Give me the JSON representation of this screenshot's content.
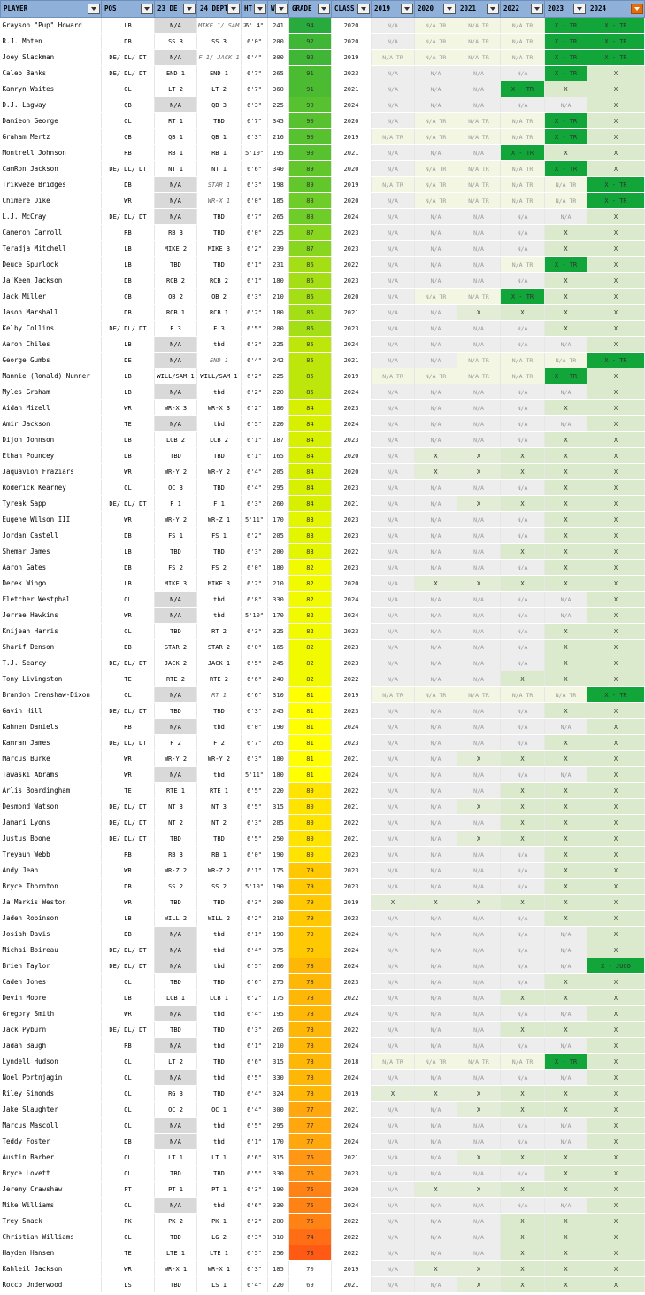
{
  "columns": [
    "PLAYER",
    "POS",
    "23 DE",
    "24 DEPTH",
    "HT",
    "WT",
    "GRADE",
    "CLASS",
    "2019",
    "2020",
    "2021",
    "2022",
    "2023",
    "2024"
  ],
  "rows": [
    [
      "Grayson \"Pup\" Howard",
      "LB",
      "N/A",
      "MIKE 1/ SAM 2",
      "6' 4\"",
      "241",
      "94",
      "2020",
      "N/A",
      "N/A TR",
      "N/A TR",
      "N/A TR",
      "X - TR",
      "X - TR"
    ],
    [
      "R.J. Moten",
      "DB",
      "SS 3",
      "SS 3",
      "6'0\"",
      "200",
      "92",
      "2020",
      "N/A",
      "N/A TR",
      "N/A TR",
      "N/A TR",
      "X - TR",
      "X - TR"
    ],
    [
      "Joey Slackman",
      "DE/ DL/ DT",
      "N/A",
      "F 1/ JACK 1",
      "6'4\"",
      "300",
      "92",
      "2019",
      "N/A TR",
      "N/A TR",
      "N/A TR",
      "N/A TR",
      "X - TR",
      "X - TR"
    ],
    [
      "Caleb Banks",
      "DE/ DL/ DT",
      "END 1",
      "END 1",
      "6'7\"",
      "265",
      "91",
      "2023",
      "N/A",
      "N/A",
      "N/A",
      "N/A",
      "X - TR",
      "X"
    ],
    [
      "Kamryn Waites",
      "OL",
      "LT 2",
      "LT 2",
      "6'7\"",
      "360",
      "91",
      "2021",
      "N/A",
      "N/A",
      "N/A",
      "X - TR",
      "X",
      "X"
    ],
    [
      "D.J. Lagway",
      "QB",
      "N/A",
      "QB 3",
      "6'3\"",
      "225",
      "90",
      "2024",
      "N/A",
      "N/A",
      "N/A",
      "N/A",
      "N/A",
      "X"
    ],
    [
      "Damieon George",
      "OL",
      "RT 1",
      "TBD",
      "6'7\"",
      "345",
      "90",
      "2020",
      "N/A",
      "N/A TR",
      "N/A TR",
      "N/A TR",
      "X - TR",
      "X"
    ],
    [
      "Graham Mertz",
      "QB",
      "QB 1",
      "QB 1",
      "6'3\"",
      "216",
      "90",
      "2019",
      "N/A TR",
      "N/A TR",
      "N/A TR",
      "N/A TR",
      "X - TR",
      "X"
    ],
    [
      "Montrell Johnson",
      "RB",
      "RB 1",
      "RB 1",
      "5'10\"",
      "195",
      "90",
      "2021",
      "N/A",
      "N/A",
      "N/A",
      "X - TR",
      "X",
      "X"
    ],
    [
      "CamRon Jackson",
      "DE/ DL/ DT",
      "NT 1",
      "NT 1",
      "6'6\"",
      "340",
      "89",
      "2020",
      "N/A",
      "N/A TR",
      "N/A TR",
      "N/A TR",
      "X - TR",
      "X"
    ],
    [
      "Trikweze Bridges",
      "DB",
      "N/A",
      "STAR 1",
      "6'3\"",
      "198",
      "89",
      "2019",
      "N/A TR",
      "N/A TR",
      "N/A TR",
      "N/A TR",
      "N/A TR",
      "X - TR"
    ],
    [
      "Chimere Dike",
      "WR",
      "N/A",
      "WR-X 1",
      "6'0\"",
      "185",
      "88",
      "2020",
      "N/A",
      "N/A TR",
      "N/A TR",
      "N/A TR",
      "N/A TR",
      "X - TR"
    ],
    [
      "L.J. McCray",
      "DE/ DL/ DT",
      "N/A",
      "TBD",
      "6'7\"",
      "265",
      "88",
      "2024",
      "N/A",
      "N/A",
      "N/A",
      "N/A",
      "N/A",
      "X"
    ],
    [
      "Cameron Carroll",
      "RB",
      "RB 3",
      "TBD",
      "6'0\"",
      "225",
      "87",
      "2023",
      "N/A",
      "N/A",
      "N/A",
      "N/A",
      "X",
      "X"
    ],
    [
      "Teradja Mitchell",
      "LB",
      "MIKE 2",
      "MIKE 3",
      "6'2\"",
      "239",
      "87",
      "2023",
      "N/A",
      "N/A",
      "N/A",
      "N/A",
      "X",
      "X"
    ],
    [
      "Deuce Spurlock",
      "LB",
      "TBD",
      "TBD",
      "6'1\"",
      "231",
      "86",
      "2022",
      "N/A",
      "N/A",
      "N/A",
      "N/A TR",
      "X - TR",
      "X"
    ],
    [
      "Ja'Keem Jackson",
      "DB",
      "RCB 2",
      "RCB 2",
      "6'1\"",
      "180",
      "86",
      "2023",
      "N/A",
      "N/A",
      "N/A",
      "N/A",
      "X",
      "X"
    ],
    [
      "Jack Miller",
      "QB",
      "QB 2",
      "QB 2",
      "6'3\"",
      "210",
      "86",
      "2020",
      "N/A",
      "N/A TR",
      "N/A TR",
      "X - TR",
      "X",
      "X"
    ],
    [
      "Jason Marshall",
      "DB",
      "RCB 1",
      "RCB 1",
      "6'2\"",
      "180",
      "86",
      "2021",
      "N/A",
      "N/A",
      "X",
      "X",
      "X",
      "X"
    ],
    [
      "Kelby Collins",
      "DE/ DL/ DT",
      "F 3",
      "F 3",
      "6'5\"",
      "280",
      "86",
      "2023",
      "N/A",
      "N/A",
      "N/A",
      "N/A",
      "X",
      "X"
    ],
    [
      "Aaron Chiles",
      "LB",
      "N/A",
      "tbd",
      "6'3\"",
      "225",
      "85",
      "2024",
      "N/A",
      "N/A",
      "N/A",
      "N/A",
      "N/A",
      "X"
    ],
    [
      "George Gumbs",
      "DE",
      "N/A",
      "END 1",
      "6'4\"",
      "242",
      "85",
      "2021",
      "N/A",
      "N/A",
      "N/A TR",
      "N/A TR",
      "N/A TR",
      "X - TR"
    ],
    [
      "Mannie (Ronald) Nunner",
      "LB",
      "WILL/SAM 1",
      "WILL/SAM 1",
      "6'2\"",
      "225",
      "85",
      "2019",
      "N/A TR",
      "N/A TR",
      "N/A TR",
      "N/A TR",
      "X - TR",
      "X"
    ],
    [
      "Myles Graham",
      "LB",
      "N/A",
      "tbd",
      "6'2\"",
      "220",
      "85",
      "2024",
      "N/A",
      "N/A",
      "N/A",
      "N/A",
      "N/A",
      "X"
    ],
    [
      "Aidan Mizell",
      "WR",
      "WR-X 3",
      "WR-X 3",
      "6'2\"",
      "180",
      "84",
      "2023",
      "N/A",
      "N/A",
      "N/A",
      "N/A",
      "X",
      "X"
    ],
    [
      "Amir Jackson",
      "TE",
      "N/A",
      "tbd",
      "6'5\"",
      "220",
      "84",
      "2024",
      "N/A",
      "N/A",
      "N/A",
      "N/A",
      "N/A",
      "X"
    ],
    [
      "Dijon Johnson",
      "DB",
      "LCB 2",
      "LCB 2",
      "6'1\"",
      "187",
      "84",
      "2023",
      "N/A",
      "N/A",
      "N/A",
      "N/A",
      "X",
      "X"
    ],
    [
      "Ethan Pouncey",
      "DB",
      "TBD",
      "TBD",
      "6'1\"",
      "165",
      "84",
      "2020",
      "N/A",
      "X",
      "X",
      "X",
      "X",
      "X"
    ],
    [
      "Jaquavion Fraziars",
      "WR",
      "WR-Y 2",
      "WR-Y 2",
      "6'4\"",
      "205",
      "84",
      "2020",
      "N/A",
      "X",
      "X",
      "X",
      "X",
      "X"
    ],
    [
      "Roderick Kearney",
      "OL",
      "OC 3",
      "TBD",
      "6'4\"",
      "295",
      "84",
      "2023",
      "N/A",
      "N/A",
      "N/A",
      "N/A",
      "X",
      "X"
    ],
    [
      "Tyreak Sapp",
      "DE/ DL/ DT",
      "F 1",
      "F 1",
      "6'3\"",
      "260",
      "84",
      "2021",
      "N/A",
      "N/A",
      "X",
      "X",
      "X",
      "X"
    ],
    [
      "Eugene Wilson III",
      "WR",
      "WR-Y 2",
      "WR-Z 1",
      "5'11\"",
      "170",
      "83",
      "2023",
      "N/A",
      "N/A",
      "N/A",
      "N/A",
      "X",
      "X"
    ],
    [
      "Jordan Castell",
      "DB",
      "FS 1",
      "FS 1",
      "6'2\"",
      "205",
      "83",
      "2023",
      "N/A",
      "N/A",
      "N/A",
      "N/A",
      "X",
      "X"
    ],
    [
      "Shemar James",
      "LB",
      "TBD",
      "TBD",
      "6'3\"",
      "200",
      "83",
      "2022",
      "N/A",
      "N/A",
      "N/A",
      "X",
      "X",
      "X"
    ],
    [
      "Aaron Gates",
      "DB",
      "FS 2",
      "FS 2",
      "6'0\"",
      "180",
      "82",
      "2023",
      "N/A",
      "N/A",
      "N/A",
      "N/A",
      "X",
      "X"
    ],
    [
      "Derek Wingo",
      "LB",
      "MIKE 3",
      "MIKE 3",
      "6'2\"",
      "210",
      "82",
      "2020",
      "N/A",
      "X",
      "X",
      "X",
      "X",
      "X"
    ],
    [
      "Fletcher Westphal",
      "OL",
      "N/A",
      "tbd",
      "6'8\"",
      "330",
      "82",
      "2024",
      "N/A",
      "N/A",
      "N/A",
      "N/A",
      "N/A",
      "X"
    ],
    [
      "Jerrae Hawkins",
      "WR",
      "N/A",
      "tbd",
      "5'10\"",
      "170",
      "82",
      "2024",
      "N/A",
      "N/A",
      "N/A",
      "N/A",
      "N/A",
      "X"
    ],
    [
      "Knijeah Harris",
      "OL",
      "TBD",
      "RT 2",
      "6'3\"",
      "325",
      "82",
      "2023",
      "N/A",
      "N/A",
      "N/A",
      "N/A",
      "X",
      "X"
    ],
    [
      "Sharif Denson",
      "DB",
      "STAR 2",
      "STAR 2",
      "6'0\"",
      "165",
      "82",
      "2023",
      "N/A",
      "N/A",
      "N/A",
      "N/A",
      "X",
      "X"
    ],
    [
      "T.J. Searcy",
      "DE/ DL/ DT",
      "JACK 2",
      "JACK 1",
      "6'5\"",
      "245",
      "82",
      "2023",
      "N/A",
      "N/A",
      "N/A",
      "N/A",
      "X",
      "X"
    ],
    [
      "Tony Livingston",
      "TE",
      "RTE 2",
      "RTE 2",
      "6'6\"",
      "240",
      "82",
      "2022",
      "N/A",
      "N/A",
      "N/A",
      "X",
      "X",
      "X"
    ],
    [
      "Brandon Crenshaw-Dixon",
      "OL",
      "N/A",
      "RT 1",
      "6'6\"",
      "310",
      "81",
      "2019",
      "N/A TR",
      "N/A TR",
      "N/A TR",
      "N/A TR",
      "N/A TR",
      "X - TR"
    ],
    [
      "Gavin Hill",
      "DE/ DL/ DT",
      "TBD",
      "TBD",
      "6'3\"",
      "245",
      "81",
      "2023",
      "N/A",
      "N/A",
      "N/A",
      "N/A",
      "X",
      "X"
    ],
    [
      "Kahnen Daniels",
      "RB",
      "N/A",
      "tbd",
      "6'0\"",
      "190",
      "81",
      "2024",
      "N/A",
      "N/A",
      "N/A",
      "N/A",
      "N/A",
      "X"
    ],
    [
      "Kamran James",
      "DE/ DL/ DT",
      "F 2",
      "F 2",
      "6'7\"",
      "265",
      "81",
      "2023",
      "N/A",
      "N/A",
      "N/A",
      "N/A",
      "X",
      "X"
    ],
    [
      "Marcus Burke",
      "WR",
      "WR-Y 2",
      "WR-Y 2",
      "6'3\"",
      "180",
      "81",
      "2021",
      "N/A",
      "N/A",
      "X",
      "X",
      "X",
      "X"
    ],
    [
      "Tawaski Abrams",
      "WR",
      "N/A",
      "tbd",
      "5'11\"",
      "180",
      "81",
      "2024",
      "N/A",
      "N/A",
      "N/A",
      "N/A",
      "N/A",
      "X"
    ],
    [
      "Arlis Boardingham",
      "TE",
      "RTE 1",
      "RTE 1",
      "6'5\"",
      "220",
      "80",
      "2022",
      "N/A",
      "N/A",
      "N/A",
      "X",
      "X",
      "X"
    ],
    [
      "Desmond Watson",
      "DE/ DL/ DT",
      "NT 3",
      "NT 3",
      "6'5\"",
      "315",
      "80",
      "2021",
      "N/A",
      "N/A",
      "X",
      "X",
      "X",
      "X"
    ],
    [
      "Jamari Lyons",
      "DE/ DL/ DT",
      "NT 2",
      "NT 2",
      "6'3\"",
      "285",
      "80",
      "2022",
      "N/A",
      "N/A",
      "N/A",
      "X",
      "X",
      "X"
    ],
    [
      "Justus Boone",
      "DE/ DL/ DT",
      "TBD",
      "TBD",
      "6'5\"",
      "250",
      "80",
      "2021",
      "N/A",
      "N/A",
      "X",
      "X",
      "X",
      "X"
    ],
    [
      "Treyaun Webb",
      "RB",
      "RB 3",
      "RB 1",
      "6'0\"",
      "190",
      "80",
      "2023",
      "N/A",
      "N/A",
      "N/A",
      "N/A",
      "X",
      "X"
    ],
    [
      "Andy Jean",
      "WR",
      "WR-Z 2",
      "WR-Z 2",
      "6'1\"",
      "175",
      "79",
      "2023",
      "N/A",
      "N/A",
      "N/A",
      "N/A",
      "X",
      "X"
    ],
    [
      "Bryce Thornton",
      "DB",
      "SS 2",
      "SS 2",
      "5'10\"",
      "190",
      "79",
      "2023",
      "N/A",
      "N/A",
      "N/A",
      "N/A",
      "X",
      "X"
    ],
    [
      "Ja'Markis Weston",
      "WR",
      "TBD",
      "TBD",
      "6'3\"",
      "200",
      "79",
      "2019",
      "X",
      "X",
      "X",
      "X",
      "X",
      "X"
    ],
    [
      "Jaden Robinson",
      "LB",
      "WILL 2",
      "WILL 2",
      "6'2\"",
      "210",
      "79",
      "2023",
      "N/A",
      "N/A",
      "N/A",
      "N/A",
      "X",
      "X"
    ],
    [
      "Josiah Davis",
      "DB",
      "N/A",
      "tbd",
      "6'1\"",
      "190",
      "79",
      "2024",
      "N/A",
      "N/A",
      "N/A",
      "N/A",
      "N/A",
      "X"
    ],
    [
      "Michai Boireau",
      "DE/ DL/ DT",
      "N/A",
      "tbd",
      "6'4\"",
      "375",
      "79",
      "2024",
      "N/A",
      "N/A",
      "N/A",
      "N/A",
      "N/A",
      "X"
    ],
    [
      "Brien Taylor",
      "DE/ DL/ DT",
      "N/A",
      "tbd",
      "6'5\"",
      "260",
      "78",
      "2024",
      "N/A",
      "N/A",
      "N/A",
      "N/A",
      "N/A",
      "X - JUCO"
    ],
    [
      "Caden Jones",
      "OL",
      "TBD",
      "TBD",
      "6'6\"",
      "275",
      "78",
      "2023",
      "N/A",
      "N/A",
      "N/A",
      "N/A",
      "X",
      "X"
    ],
    [
      "Devin Moore",
      "DB",
      "LCB 1",
      "LCB 1",
      "6'2\"",
      "175",
      "78",
      "2022",
      "N/A",
      "N/A",
      "N/A",
      "X",
      "X",
      "X"
    ],
    [
      "Gregory Smith",
      "WR",
      "N/A",
      "tbd",
      "6'4\"",
      "195",
      "78",
      "2024",
      "N/A",
      "N/A",
      "N/A",
      "N/A",
      "N/A",
      "X"
    ],
    [
      "Jack Pyburn",
      "DE/ DL/ DT",
      "TBD",
      "TBD",
      "6'3\"",
      "265",
      "78",
      "2022",
      "N/A",
      "N/A",
      "N/A",
      "X",
      "X",
      "X"
    ],
    [
      "Jadan Baugh",
      "RB",
      "N/A",
      "tbd",
      "6'1\"",
      "210",
      "78",
      "2024",
      "N/A",
      "N/A",
      "N/A",
      "N/A",
      "N/A",
      "X"
    ],
    [
      "Lyndell Hudson",
      "OL",
      "LT 2",
      "TBD",
      "6'6\"",
      "315",
      "78",
      "2018",
      "N/A TR",
      "N/A TR",
      "N/A TR",
      "N/A TR",
      "X - TR",
      "X"
    ],
    [
      "Noel Portnjagin",
      "OL",
      "N/A",
      "tbd",
      "6'5\"",
      "330",
      "78",
      "2024",
      "N/A",
      "N/A",
      "N/A",
      "N/A",
      "N/A",
      "X"
    ],
    [
      "Riley Simonds",
      "OL",
      "RG 3",
      "TBD",
      "6'4\"",
      "324",
      "78",
      "2019",
      "X",
      "X",
      "X",
      "X",
      "X",
      "X"
    ],
    [
      "Jake Slaughter",
      "OL",
      "OC 2",
      "OC 1",
      "6'4\"",
      "300",
      "77",
      "2021",
      "N/A",
      "N/A",
      "X",
      "X",
      "X",
      "X"
    ],
    [
      "Marcus Mascoll",
      "OL",
      "N/A",
      "tbd",
      "6'5\"",
      "295",
      "77",
      "2024",
      "N/A",
      "N/A",
      "N/A",
      "N/A",
      "N/A",
      "X"
    ],
    [
      "Teddy Foster",
      "DB",
      "N/A",
      "tbd",
      "6'1\"",
      "170",
      "77",
      "2024",
      "N/A",
      "N/A",
      "N/A",
      "N/A",
      "N/A",
      "X"
    ],
    [
      "Austin Barber",
      "OL",
      "LT 1",
      "LT 1",
      "6'6\"",
      "315",
      "76",
      "2021",
      "N/A",
      "N/A",
      "X",
      "X",
      "X",
      "X"
    ],
    [
      "Bryce Lovett",
      "OL",
      "TBD",
      "TBD",
      "6'5\"",
      "330",
      "76",
      "2023",
      "N/A",
      "N/A",
      "N/A",
      "N/A",
      "X",
      "X"
    ],
    [
      "Jeremy Crawshaw",
      "PT",
      "PT 1",
      "PT 1",
      "6'3\"",
      "190",
      "75",
      "2020",
      "N/A",
      "X",
      "X",
      "X",
      "X",
      "X"
    ],
    [
      "Mike Williams",
      "OL",
      "N/A",
      "tbd",
      "6'6\"",
      "330",
      "75",
      "2024",
      "N/A",
      "N/A",
      "N/A",
      "N/A",
      "N/A",
      "X"
    ],
    [
      "Trey Smack",
      "PK",
      "PK 2",
      "PK 1",
      "6'2\"",
      "200",
      "75",
      "2022",
      "N/A",
      "N/A",
      "N/A",
      "X",
      "X",
      "X"
    ],
    [
      "Christian Williams",
      "OL",
      "TBD",
      "LG 2",
      "6'3\"",
      "310",
      "74",
      "2022",
      "N/A",
      "N/A",
      "N/A",
      "X",
      "X",
      "X"
    ],
    [
      "Hayden Hansen",
      "TE",
      "LTE 1",
      "LTE 1",
      "6'5\"",
      "250",
      "73",
      "2022",
      "N/A",
      "N/A",
      "N/A",
      "X",
      "X",
      "X"
    ],
    [
      "Kahleil Jackson",
      "WR",
      "WR-X 1",
      "WR-X 1",
      "6'3\"",
      "185",
      "70",
      "2019",
      "N/A",
      "X",
      "X",
      "X",
      "X",
      "X"
    ],
    [
      "Rocco Underwood",
      "LS",
      "TBD",
      "LS 1",
      "6'4\"",
      "220",
      "69",
      "2021",
      "N/A",
      "N/A",
      "X",
      "X",
      "X",
      "X"
    ]
  ],
  "colors": {
    "header": "#8fb0d9",
    "na_grey": "#d9d9d9",
    "cell_light": "#ededed",
    "tr_tint": "#f3f6e2",
    "x_light": "#dbe9cc",
    "x_green": "#12a53a",
    "filter_active": "#e46c0a"
  }
}
